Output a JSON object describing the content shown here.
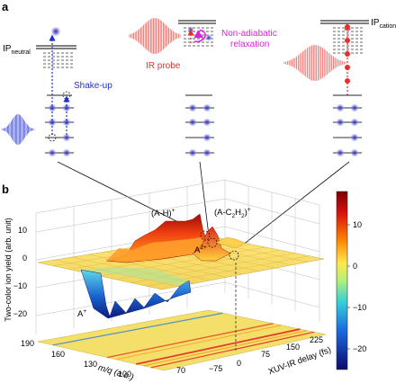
{
  "panel_a": {
    "label": "a",
    "ip_neutral": "IP",
    "ip_neutral_sub": "neutral",
    "ip_cation": "IP",
    "ip_cation_sub": "cation",
    "shake_up": "Shake-up",
    "ir_probe": "IR probe",
    "non_adiabatic_line1": "Non-adiabatic",
    "non_adiabatic_line2": "relaxation",
    "colors": {
      "xuv": "#1f2fd0",
      "ir": "#e8302a",
      "relax": "#e020e0",
      "dot": "#2a2ab8"
    }
  },
  "panel_b": {
    "label": "b",
    "ylabel": "Two-color ion yield (arb. unit)",
    "z_ticks": [
      "10",
      "0",
      "−10",
      "−20"
    ],
    "peak_AH": "(A-H)",
    "peak_AH_sup": "+",
    "peak_AC2H2": "(A-C",
    "peak_AC2H2_sub": "2",
    "peak_AC2H2_h": "H",
    "peak_AC2H2_sub2": "2",
    "peak_AC2H2_close": ")",
    "peak_AC2H2_sup": "+",
    "peak_A2": "A",
    "peak_A2_sup": "2+",
    "peak_A": "A",
    "peak_A_sup": "+",
    "mq_label": "m/q (a.u.)",
    "mq_ticks": [
      "190",
      "160",
      "130",
      "100",
      "70"
    ],
    "delay_label": "XUV-IR delay (fs)",
    "delay_ticks": [
      "−75",
      "0",
      "75",
      "150",
      "225"
    ],
    "colorbar_ticks": [
      "10",
      "0",
      "−10",
      "−20"
    ]
  }
}
